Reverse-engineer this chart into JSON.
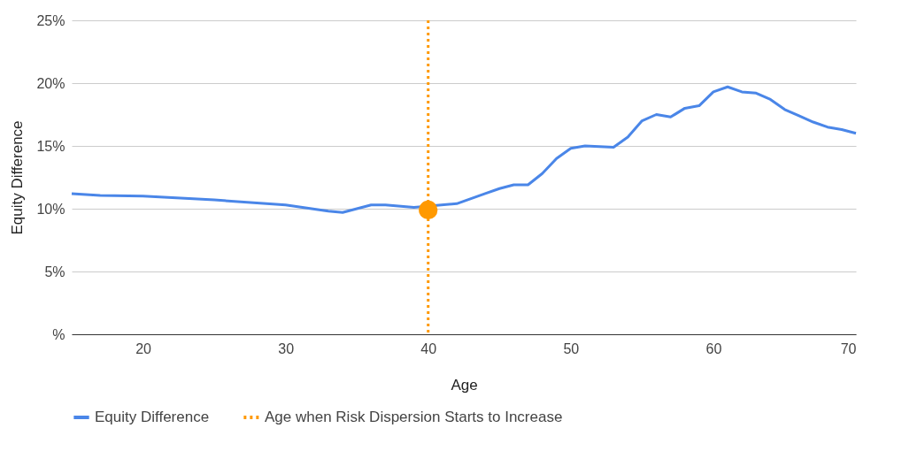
{
  "chart_data": {
    "type": "line",
    "xlabel": "Age",
    "ylabel": "Equity Difference",
    "xlim": [
      15,
      70
    ],
    "xticks": [
      20,
      30,
      40,
      50,
      60,
      70
    ],
    "ylim": [
      0,
      25
    ],
    "yticks": [
      {
        "value": 0,
        "label": "%"
      },
      {
        "value": 5,
        "label": "5%"
      },
      {
        "value": 10,
        "label": "10%"
      },
      {
        "value": 15,
        "label": "15%"
      },
      {
        "value": 20,
        "label": "20%"
      },
      {
        "value": 25,
        "label": "25%"
      }
    ],
    "grid": "y",
    "legend": "bottom",
    "line_style": "solid",
    "marker": "none",
    "series": [
      {
        "name": "Equity Difference",
        "color": "#4a86e8",
        "x": [
          15,
          17,
          20,
          25,
          30,
          33,
          34,
          36,
          37,
          39,
          42,
          44,
          45,
          46,
          47,
          48,
          49,
          50,
          51,
          53,
          54,
          55,
          56,
          57,
          58,
          59,
          60,
          61,
          62,
          63,
          64,
          65,
          66,
          67,
          68,
          69,
          70
        ],
        "values": [
          11.2,
          11.05,
          11.0,
          10.7,
          10.3,
          9.8,
          9.7,
          10.3,
          10.3,
          10.1,
          10.4,
          11.2,
          11.6,
          11.9,
          11.9,
          12.8,
          14.0,
          14.8,
          15.0,
          14.9,
          15.7,
          17.0,
          17.5,
          17.3,
          18.0,
          18.2,
          19.3,
          19.7,
          19.3,
          19.2,
          18.7,
          17.9,
          17.4,
          16.9,
          16.5,
          16.3,
          16.0
        ]
      },
      {
        "type": "scatter",
        "marker": "circle",
        "color": "#ff9900",
        "x": [
          40
        ],
        "values": [
          9.9
        ]
      }
    ],
    "ref_lines": [
      {
        "axis": "x",
        "value": 40,
        "label": "Age when Risk Dispersion Starts to Increase",
        "color": "#ff9900",
        "line_style": "dotted"
      }
    ]
  }
}
